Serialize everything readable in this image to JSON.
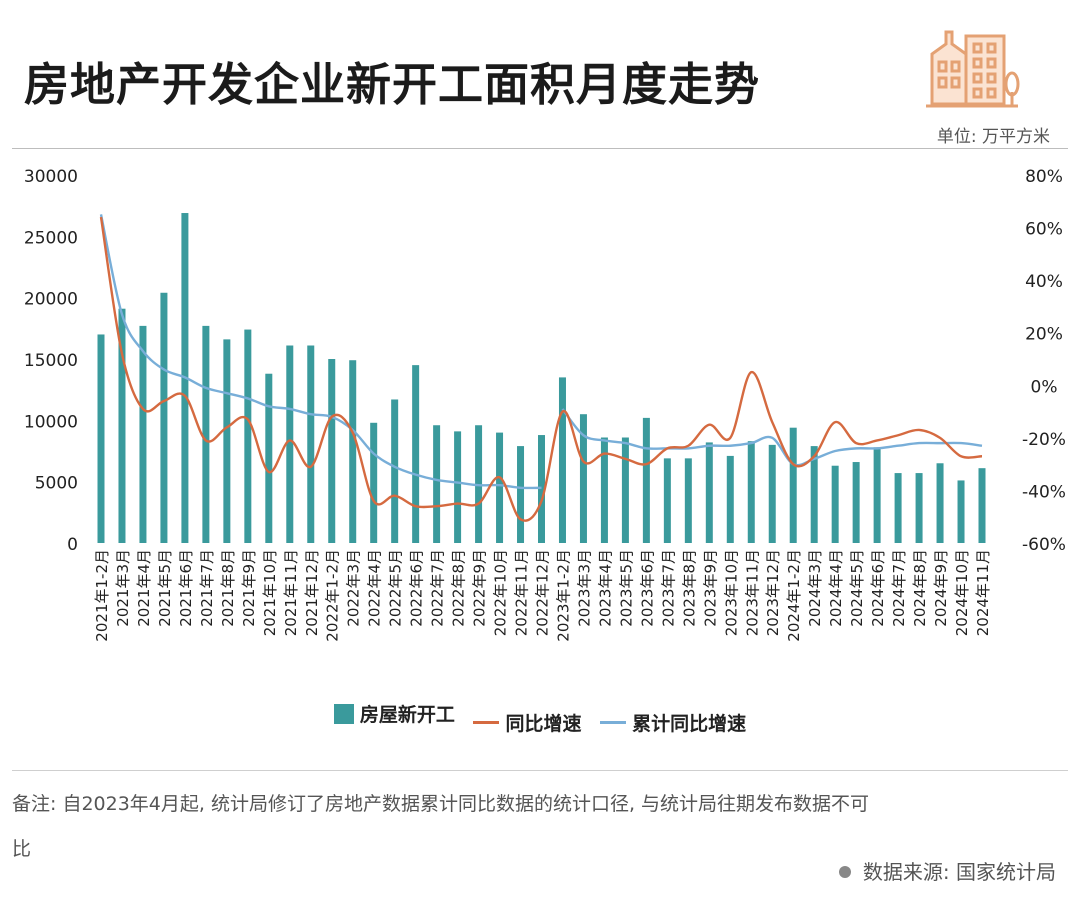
{
  "header": {
    "title": "房地产开发企业新开工面积月度走势",
    "unit": "单位: 万平方米",
    "logo_icon": "buildings-icon"
  },
  "colors": {
    "bar": "#3a9a9c",
    "yoy_line": "#d56a40",
    "cum_line": "#78aed8",
    "logo": "#e4a173"
  },
  "legend": {
    "bar_label": "房屋新开工",
    "yoy_label": "同比增速",
    "cum_label": "累计同比增速"
  },
  "footer": {
    "note": "备注: 自2023年4月起, 统计局修订了房地产数据累计同比数据的统计口径, 与统计局往期发布数据不可比",
    "source": "数据来源: 国家统计局"
  },
  "chart_data": {
    "type": "bar",
    "categories": [
      "2021年1-2月",
      "2021年3月",
      "2021年4月",
      "2021年5月",
      "2021年6月",
      "2021年7月",
      "2021年8月",
      "2021年9月",
      "2021年10月",
      "2021年11月",
      "2021年12月",
      "2022年1-2月",
      "2022年3月",
      "2022年4月",
      "2022年5月",
      "2022年6月",
      "2022年7月",
      "2022年8月",
      "2022年9月",
      "2022年10月",
      "2022年11月",
      "2022年12月",
      "2023年1-2月",
      "2023年3月",
      "2023年4月",
      "2023年5月",
      "2023年6月",
      "2023年7月",
      "2023年8月",
      "2023年9月",
      "2023年10月",
      "2023年11月",
      "2023年12月",
      "2024年1-2月",
      "2024年3月",
      "2024年4月",
      "2024年5月",
      "2024年6月",
      "2024年7月",
      "2024年8月",
      "2024年9月",
      "2024年10月",
      "2024年11月"
    ],
    "y_left": {
      "min": 0,
      "max": 30000,
      "ticks": [
        0,
        5000,
        10000,
        15000,
        20000,
        25000,
        30000
      ]
    },
    "y_right": {
      "min": -60,
      "max": 80,
      "ticks": [
        -60,
        -40,
        -20,
        0,
        20,
        40,
        60,
        80
      ],
      "unit": "%"
    },
    "legend_position": "bottom",
    "grid": false,
    "series": [
      {
        "name": "房屋新开工",
        "type": "bar",
        "axis": "left",
        "values": [
          17000,
          19100,
          17700,
          20400,
          26900,
          17700,
          16600,
          17400,
          13800,
          16100,
          16100,
          15000,
          14900,
          9800,
          11700,
          14500,
          9600,
          9100,
          9600,
          9000,
          7900,
          8800,
          13500,
          10500,
          8600,
          8600,
          10200,
          6900,
          6900,
          8200,
          7100,
          8300,
          8000,
          9400,
          7900,
          6300,
          6600,
          7800,
          5700,
          5700,
          6500,
          5100,
          6100
        ]
      },
      {
        "name": "同比增速",
        "type": "line",
        "axis": "right",
        "values": [
          64,
          12,
          -9,
          -6,
          -4,
          -21,
          -16,
          -13,
          -33,
          -21,
          -31,
          -12,
          -18,
          -44,
          -42,
          -46,
          -46,
          -45,
          -45,
          -35,
          -51,
          -44,
          -10,
          -29,
          -26,
          -28,
          -30,
          -24,
          -23,
          -15,
          -20,
          5,
          -14,
          -30,
          -27,
          -14,
          -22,
          -21,
          -19,
          -17,
          -20,
          -27,
          -27
        ]
      },
      {
        "name": "累计同比增速",
        "type": "line",
        "axis": "right",
        "values": [
          65,
          27,
          13,
          6,
          3,
          -1,
          -3,
          -5,
          -8,
          -9,
          -11,
          -12,
          -17,
          -26,
          -31,
          -34,
          -36,
          -37,
          -38,
          -38,
          -39,
          -39,
          -9,
          -19,
          -21,
          -22,
          -24,
          -24,
          -24,
          -23,
          -23,
          -22,
          -20,
          -30,
          -28,
          -25,
          -24,
          -24,
          -23,
          -22,
          -22,
          -22,
          -23
        ]
      }
    ]
  }
}
